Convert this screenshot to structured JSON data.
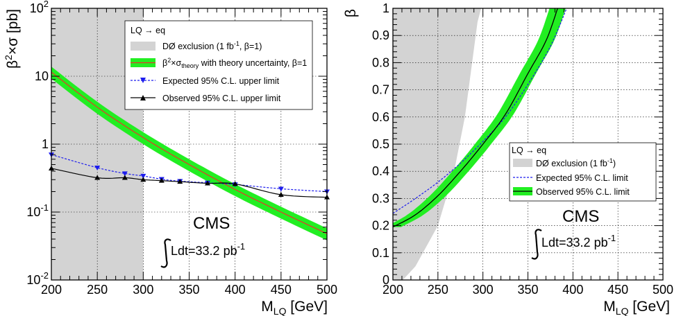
{
  "chart_data": [
    {
      "type": "line",
      "y_scale": "log",
      "xlim": [
        200,
        500
      ],
      "ylim": [
        0.01,
        100
      ],
      "grid": true,
      "xlabel": {
        "main": "M",
        "sub": "LQ",
        "tail": " [GeV]"
      },
      "ylabel": {
        "a": "β",
        "a_sup": "2",
        "b": "×σ [pb]"
      },
      "x_ticks": [
        "200",
        "250",
        "300",
        "350",
        "400",
        "450",
        "500"
      ],
      "y_ticks": [
        {
          "value": 100,
          "base": "10",
          "sup": "2"
        },
        {
          "value": 10,
          "base": "10",
          "sup": ""
        },
        {
          "value": 1,
          "base": "1",
          "sup": ""
        },
        {
          "value": 0.1,
          "base": "10",
          "sup": "-1"
        },
        {
          "value": 0.01,
          "base": "10",
          "sup": "-2"
        }
      ],
      "legend": {
        "placement": "top-right",
        "header": "LQ → eq",
        "entries": [
          {
            "text": "DØ exclusion (1 fb",
            "sup": "-1",
            "tail": ", β=1)"
          },
          {
            "text": "β",
            "sup": "2",
            "tail": "×σ",
            "sub": "theory",
            "tail2": " with theory uncertainty, β=1"
          },
          {
            "text": "Expected 95% C.L. upper limit"
          },
          {
            "text": "Observed 95% C.L. upper limit"
          }
        ]
      },
      "annotations": {
        "experiment": "CMS",
        "lumi": "Ldt=33.2 pb",
        "lumi_sup": "-1"
      },
      "exclusion_band": {
        "x_range": [
          200,
          300
        ],
        "color": "#d3d3d3"
      },
      "theory": {
        "x": [
          200,
          250,
          300,
          350,
          400,
          450,
          500
        ],
        "y": [
          11.5,
          3.5,
          1.25,
          0.5,
          0.215,
          0.1,
          0.048
        ],
        "rel_band": 0.2,
        "line_color": "#e8362a",
        "band_color": "#22ee22"
      },
      "series": [
        {
          "name": "Expected 95% C.L. upper limit",
          "color": "#1c1cee",
          "x": [
            200,
            250,
            280,
            300,
            320,
            340,
            370,
            400,
            450,
            500
          ],
          "y": [
            0.7,
            0.45,
            0.37,
            0.34,
            0.305,
            0.285,
            0.27,
            0.255,
            0.22,
            0.2
          ]
        },
        {
          "name": "Observed 95% C.L. upper limit",
          "color": "#000000",
          "x": [
            200,
            250,
            280,
            300,
            320,
            340,
            370,
            400,
            450,
            500
          ],
          "y": [
            0.44,
            0.32,
            0.32,
            0.3,
            0.29,
            0.28,
            0.265,
            0.26,
            0.18,
            0.165
          ]
        }
      ]
    },
    {
      "type": "line",
      "xlim": [
        200,
        500
      ],
      "ylim": [
        0,
        1
      ],
      "grid": true,
      "xlabel": {
        "main": "M",
        "sub": "LQ",
        "tail": " [GeV]"
      },
      "ylabel": {
        "a": "β"
      },
      "x_ticks": [
        "200",
        "250",
        "300",
        "350",
        "400",
        "450",
        "500"
      ],
      "y_ticks": [
        "0",
        "0.1",
        "0.2",
        "0.3",
        "0.4",
        "0.5",
        "0.6",
        "0.7",
        "0.8",
        "0.9",
        "1"
      ],
      "legend": {
        "placement": "center-right",
        "header": "LQ → eq",
        "entries": [
          {
            "text": "DØ exclusion (1 fb",
            "sup": "-1",
            "tail": ")"
          },
          {
            "text": "Expected 95% C.L. limit"
          },
          {
            "text": "Observed 95% C.L. limit"
          }
        ]
      },
      "annotations": {
        "experiment": "CMS",
        "lumi": "Ldt=33.2 pb",
        "lumi_sup": "-1"
      },
      "exclusion_region": {
        "color": "#d3d3d3",
        "boundary_x": [
          211,
          225,
          250,
          268,
          280,
          288,
          294,
          298
        ],
        "boundary_y": [
          0.0,
          0.05,
          0.2,
          0.4,
          0.6,
          0.8,
          0.95,
          1.0
        ]
      },
      "observed": {
        "color": "#000000",
        "band_color": "#22ee22",
        "x": [
          200,
          225,
          250,
          275,
          300,
          325,
          350,
          370,
          383
        ],
        "y": [
          0.195,
          0.24,
          0.31,
          0.4,
          0.5,
          0.61,
          0.76,
          0.88,
          1.0
        ],
        "band_dx": 9
      },
      "expected": {
        "color": "#1c1cee",
        "x": [
          200,
          225,
          250,
          275,
          300,
          325,
          350,
          375,
          393
        ],
        "y": [
          0.245,
          0.3,
          0.36,
          0.43,
          0.51,
          0.6,
          0.72,
          0.86,
          1.0
        ]
      }
    }
  ]
}
